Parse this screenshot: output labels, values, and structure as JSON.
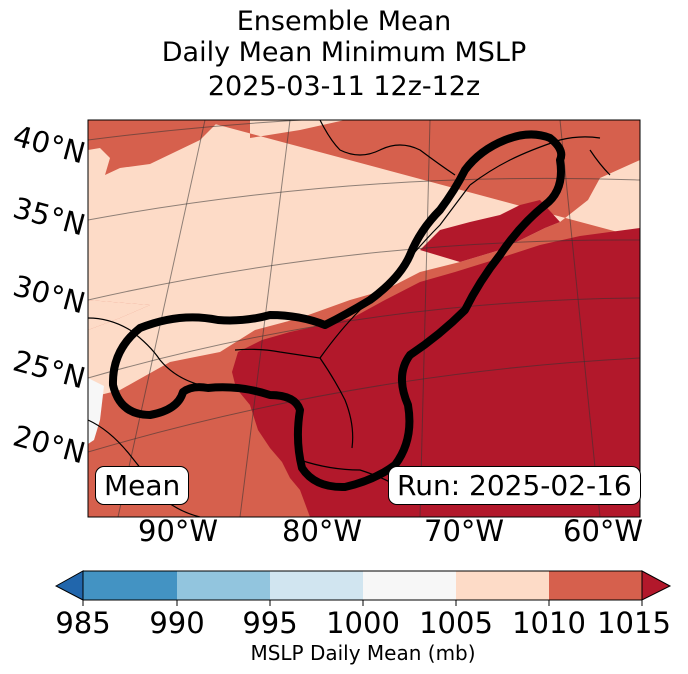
{
  "title": {
    "line1": "Ensemble Mean",
    "line2": "Daily Mean Minimum MSLP",
    "line3": "2025-03-11 12z-12z"
  },
  "axes": {
    "lat_labels": [
      "40°N",
      "35°N",
      "30°N",
      "25°N",
      "20°N"
    ],
    "lon_labels": [
      "90°W",
      "80°W",
      "70°W",
      "60°W"
    ]
  },
  "annotations": {
    "left_box": "Mean",
    "right_box": "Run: 2025-02-16"
  },
  "colorbar": {
    "label": "MSLP Daily Mean (mb)",
    "ticks": [
      "985",
      "990",
      "995",
      "1000",
      "1005",
      "1010",
      "1015"
    ],
    "colors": [
      "#2166ac",
      "#4393c3",
      "#92c5de",
      "#d1e5f0",
      "#f7f7f7",
      "#fddbc7",
      "#d6604d",
      "#b2182b"
    ]
  },
  "map_colors": {
    "light": "#fddbc7",
    "mid": "#d6604d",
    "dark": "#b2182b",
    "white": "#f7f7f7",
    "contour": "#000000"
  }
}
